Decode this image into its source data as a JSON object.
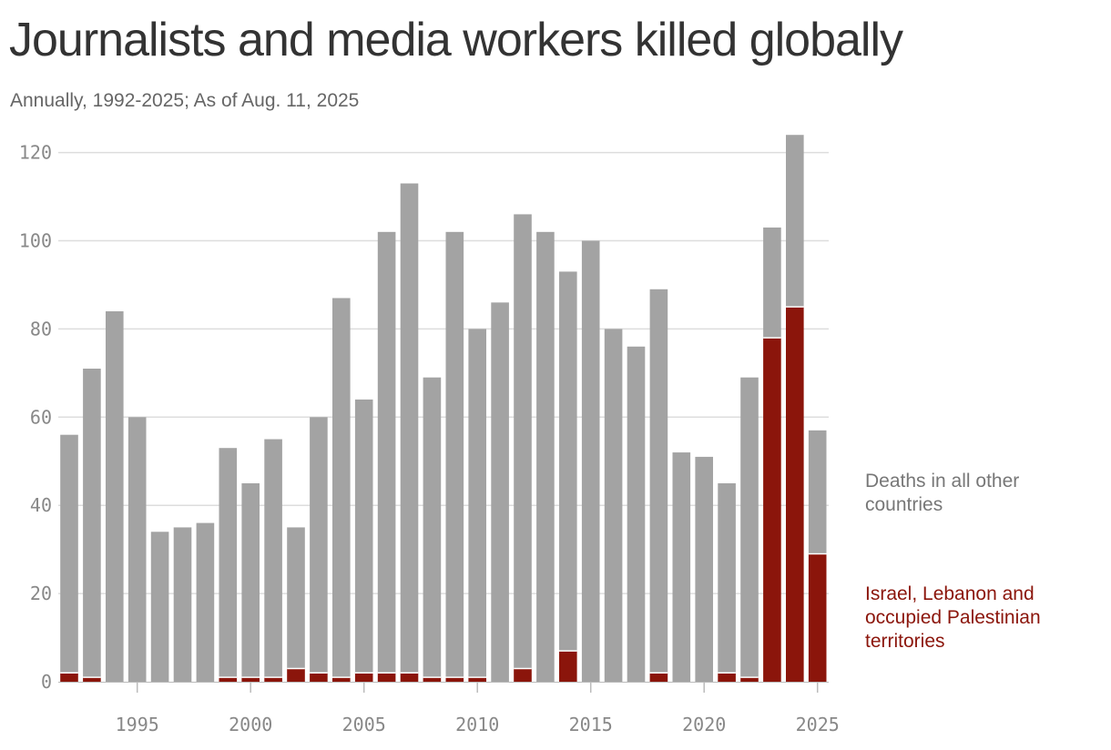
{
  "header": {
    "title": "Journalists and media workers killed globally",
    "subtitle": "Annually, 1992-2025; As of Aug. 11, 2025"
  },
  "legend": {
    "other_label": "Deaths in all other countries",
    "red_label": "Israel, Lebanon and occupied Palestinian territories"
  },
  "colors": {
    "other": "#a3a3a3",
    "israel_lebanon_palestine": "#8b150b",
    "grid": "#dddddd",
    "title": "#333333",
    "subtitle": "#666666",
    "tick": "#888888"
  },
  "chart_data": {
    "type": "bar",
    "stacked": true,
    "title": "Journalists and media workers killed globally",
    "subtitle": "Annually, 1992-2025; As of Aug. 11, 2025",
    "xlabel": "",
    "ylabel": "",
    "ylim": [
      0,
      124
    ],
    "yticks": [
      0,
      20,
      40,
      60,
      80,
      100,
      120
    ],
    "xticks": [
      1995,
      2000,
      2005,
      2010,
      2015,
      2020,
      2025
    ],
    "grid": true,
    "legend_position": "right",
    "categories": [
      1992,
      1993,
      1994,
      1995,
      1996,
      1997,
      1998,
      1999,
      2000,
      2001,
      2002,
      2003,
      2004,
      2005,
      2006,
      2007,
      2008,
      2009,
      2010,
      2011,
      2012,
      2013,
      2014,
      2015,
      2016,
      2017,
      2018,
      2019,
      2020,
      2021,
      2022,
      2023,
      2024,
      2025
    ],
    "series": [
      {
        "name": "Israel, Lebanon and occupied Palestinian territories",
        "values": [
          2,
          1,
          0,
          0,
          0,
          0,
          0,
          1,
          1,
          1,
          3,
          2,
          1,
          2,
          2,
          2,
          1,
          1,
          1,
          0,
          3,
          0,
          7,
          0,
          0,
          0,
          2,
          0,
          0,
          2,
          1,
          78,
          85,
          29
        ]
      },
      {
        "name": "Deaths in all other countries",
        "values": [
          54,
          70,
          84,
          60,
          34,
          35,
          36,
          52,
          44,
          54,
          32,
          58,
          86,
          62,
          100,
          111,
          68,
          101,
          79,
          86,
          103,
          102,
          86,
          100,
          80,
          76,
          87,
          52,
          51,
          43,
          68,
          25,
          39,
          28
        ]
      }
    ],
    "totals": [
      56,
      71,
      84,
      60,
      34,
      35,
      36,
      53,
      45,
      55,
      35,
      60,
      87,
      64,
      102,
      113,
      69,
      102,
      80,
      86,
      106,
      102,
      93,
      100,
      80,
      76,
      89,
      52,
      51,
      45,
      69,
      103,
      124,
      57
    ]
  }
}
